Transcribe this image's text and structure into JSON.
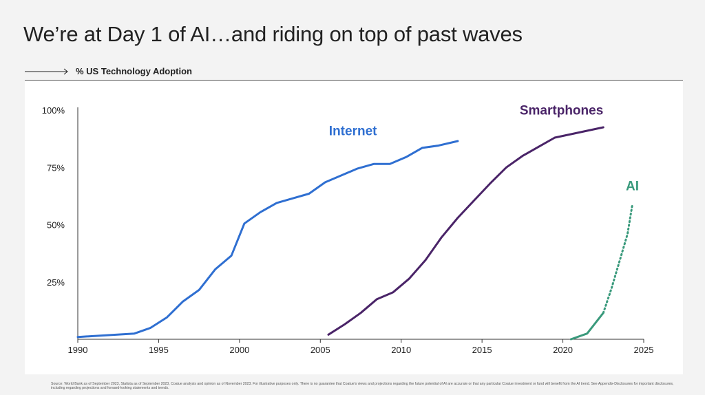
{
  "header": {
    "title": "We’re at Day 1 of AI…and riding on top of past waves",
    "subtitle": "% US Technology Adoption"
  },
  "chart_data": {
    "type": "line",
    "title": "% US Technology Adoption",
    "xlabel": "",
    "ylabel": "",
    "xlim": [
      1990,
      2025
    ],
    "ylim": [
      0,
      100
    ],
    "x_ticks": [
      1990,
      1995,
      2000,
      2005,
      2010,
      2015,
      2020,
      2025
    ],
    "y_ticks": [
      25,
      50,
      75,
      100
    ],
    "y_tick_labels": [
      "25%",
      "50%",
      "75%",
      "100%"
    ],
    "grid": false,
    "series": [
      {
        "name": "Internet",
        "color": "#2f6fd1",
        "points": [
          [
            1990,
            1
          ],
          [
            1993.5,
            2.5
          ],
          [
            1994.5,
            5
          ],
          [
            1995.5,
            9.5
          ],
          [
            1996.5,
            16.5
          ],
          [
            1997.5,
            21.5
          ],
          [
            1998.5,
            30.5
          ],
          [
            1999.5,
            36.5
          ],
          [
            2000.3,
            50.5
          ],
          [
            2001.3,
            55.5
          ],
          [
            2002.3,
            59.5
          ],
          [
            2003.3,
            61.5
          ],
          [
            2004.3,
            63.5
          ],
          [
            2005.3,
            68.5
          ],
          [
            2006.3,
            71.5
          ],
          [
            2007.3,
            74.5
          ],
          [
            2008.3,
            76.5
          ],
          [
            2009.3,
            76.5
          ],
          [
            2010.3,
            79.5
          ],
          [
            2011.3,
            83.5
          ],
          [
            2012.3,
            84.5
          ],
          [
            2013.5,
            86.5
          ]
        ],
        "style": "solid"
      },
      {
        "name": "Smartphones",
        "color": "#4a2468",
        "points": [
          [
            2005.5,
            2
          ],
          [
            2006.5,
            6.5
          ],
          [
            2007.5,
            11.5
          ],
          [
            2008.5,
            17.5
          ],
          [
            2009.5,
            20.5
          ],
          [
            2010.5,
            26.5
          ],
          [
            2011.5,
            34.5
          ],
          [
            2012.5,
            44.5
          ],
          [
            2013.5,
            53
          ],
          [
            2014.5,
            60.5
          ],
          [
            2015.5,
            68
          ],
          [
            2016.5,
            75
          ],
          [
            2017.5,
            80
          ],
          [
            2018.5,
            84
          ],
          [
            2019.5,
            88
          ],
          [
            2020.5,
            89.5
          ],
          [
            2021.5,
            91
          ],
          [
            2022.5,
            92.5
          ]
        ],
        "style": "solid"
      },
      {
        "name": "AI",
        "color": "#3a9a7c",
        "points": [
          [
            2020.5,
            0
          ],
          [
            2021.5,
            2.5
          ],
          [
            2022.5,
            11.5
          ]
        ],
        "projection": [
          [
            2022.5,
            11.5
          ],
          [
            2023.0,
            22
          ],
          [
            2023.5,
            34
          ],
          [
            2024.0,
            46
          ],
          [
            2024.3,
            59
          ]
        ],
        "style": "solid+dotted"
      }
    ],
    "annotations": [
      {
        "text": "Internet",
        "series": "Internet"
      },
      {
        "text": "Smartphones",
        "series": "Smartphones"
      },
      {
        "text": "AI",
        "series": "AI"
      }
    ]
  },
  "footnote": "Source: World Bank as of September 2023, Statista as of September 2023, Coatue analysis and opinion as of November 2023. For illustrative purposes only. There is no guarantee that Coatue's views and projections regarding the future potential of AI are accurate or that any particular Coatue investment or fund will benefit from the AI trend. See Appendix-Disclosures for important disclosures, including regarding projections and forward-looking statements and trends."
}
